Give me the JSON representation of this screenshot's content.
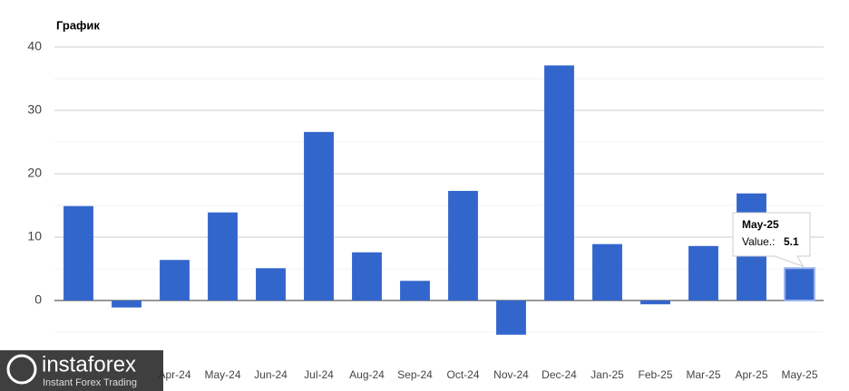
{
  "chart_data": {
    "type": "bar",
    "title": "График",
    "categories": [
      null,
      null,
      "Apr-24",
      "May-24",
      "Jun-24",
      "Jul-24",
      "Aug-24",
      "Sep-24",
      "Oct-24",
      "Nov-24",
      "Dec-24",
      "Jan-25",
      "Feb-25",
      "Mar-25",
      "Apr-25",
      "May-25"
    ],
    "values": [
      14.9,
      -1.1,
      6.4,
      13.9,
      5.1,
      26.6,
      7.6,
      3.1,
      17.3,
      -5.4,
      37.1,
      8.9,
      -0.6,
      8.6,
      16.9,
      5.1
    ],
    "color": "#3366cc",
    "ylim": [
      -6,
      40
    ],
    "yticks": [
      0,
      10,
      20,
      30,
      40
    ],
    "minor_yticks": [
      -5,
      5,
      15,
      25,
      35
    ],
    "grid": true,
    "tooltip": {
      "title": "May-25",
      "label": "Value.:",
      "value": "5.1"
    }
  },
  "watermark": {
    "brand": "instaforex",
    "tagline": "Instant Forex Trading"
  }
}
